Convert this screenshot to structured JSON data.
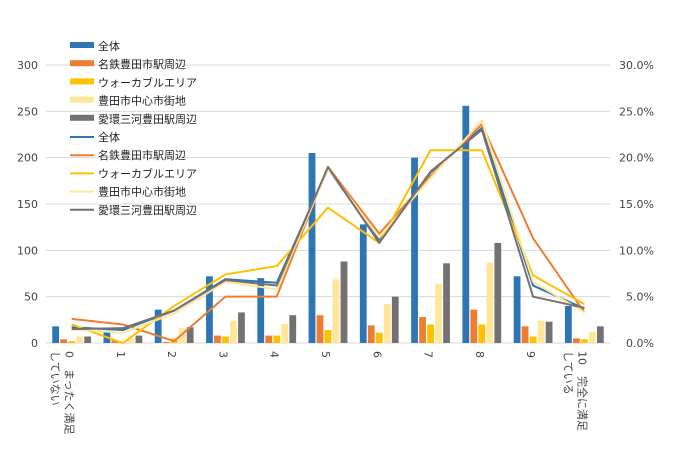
{
  "chart_data": {
    "type": "bar+line",
    "categories": [
      "0",
      "1",
      "2",
      "3",
      "4",
      "5",
      "6",
      "7",
      "8",
      "9",
      "10"
    ],
    "x_tick_labels": [
      "0　まったく満足していない",
      "1",
      "2",
      "3",
      "4",
      "5",
      "6",
      "7",
      "8",
      "9",
      "10　完全に満足している"
    ],
    "x_tick_labels_lines": {
      "0": [
        "0　まったく満足",
        "していない"
      ],
      "10": [
        "10　完全に満足",
        "している"
      ]
    },
    "left_axis": {
      "ylim": [
        0,
        300
      ],
      "ticks": [
        "0",
        "50",
        "100",
        "150",
        "200",
        "250",
        "300"
      ]
    },
    "right_axis": {
      "ylim": [
        0,
        0.3
      ],
      "ticks": [
        "0.0%",
        "5.0%",
        "10.0%",
        "15.0%",
        "20.0%",
        "25.0%",
        "30.0%"
      ]
    },
    "bar_series": [
      {
        "name": "全体",
        "color": "#2e75b6",
        "values": [
          18,
          13,
          36,
          72,
          70,
          205,
          128,
          200,
          256,
          72,
          40
        ]
      },
      {
        "name": "名鉄豊田市駅周辺",
        "color": "#ed7d31",
        "values": [
          4,
          3,
          1,
          8,
          8,
          30,
          19,
          28,
          36,
          18,
          5
        ]
      },
      {
        "name": "ウォーカブルエリア",
        "color": "#ffc000",
        "values": [
          2,
          0,
          5,
          7,
          8,
          14,
          11,
          20,
          20,
          7,
          4
        ]
      },
      {
        "name": "豊田市中心市街地",
        "color": "#ffe699",
        "values": [
          7,
          5,
          16,
          24,
          21,
          69,
          42,
          64,
          87,
          24,
          12
        ]
      },
      {
        "name": "愛環三河豊田駅周辺",
        "color": "#767171",
        "values": [
          7,
          8,
          17,
          33,
          30,
          88,
          50,
          86,
          108,
          23,
          18
        ]
      }
    ],
    "line_series": [
      {
        "name": "全体",
        "color": "#2e75b6",
        "values": [
          0.017,
          0.014,
          0.035,
          0.069,
          0.065,
          0.188,
          0.111,
          0.184,
          0.232,
          0.062,
          0.037
        ]
      },
      {
        "name": "名鉄豊田市駅周辺",
        "color": "#ed7d31",
        "values": [
          0.026,
          0.02,
          0.002,
          0.05,
          0.05,
          0.19,
          0.118,
          0.18,
          0.236,
          0.113,
          0.033
        ]
      },
      {
        "name": "ウォーカブルエリア",
        "color": "#ffc000",
        "values": [
          0.02,
          0.0,
          0.04,
          0.074,
          0.083,
          0.146,
          0.108,
          0.208,
          0.208,
          0.073,
          0.042
        ]
      },
      {
        "name": "豊田市中心市街地",
        "color": "#ffe699",
        "values": [
          0.015,
          0.011,
          0.032,
          0.066,
          0.058,
          0.188,
          0.114,
          0.178,
          0.24,
          0.066,
          0.033
        ]
      },
      {
        "name": "愛環三河豊田駅周辺",
        "color": "#767171",
        "values": [
          0.015,
          0.016,
          0.035,
          0.068,
          0.062,
          0.19,
          0.108,
          0.185,
          0.23,
          0.05,
          0.038
        ]
      }
    ],
    "grid": true,
    "legend_position": "top-left"
  }
}
